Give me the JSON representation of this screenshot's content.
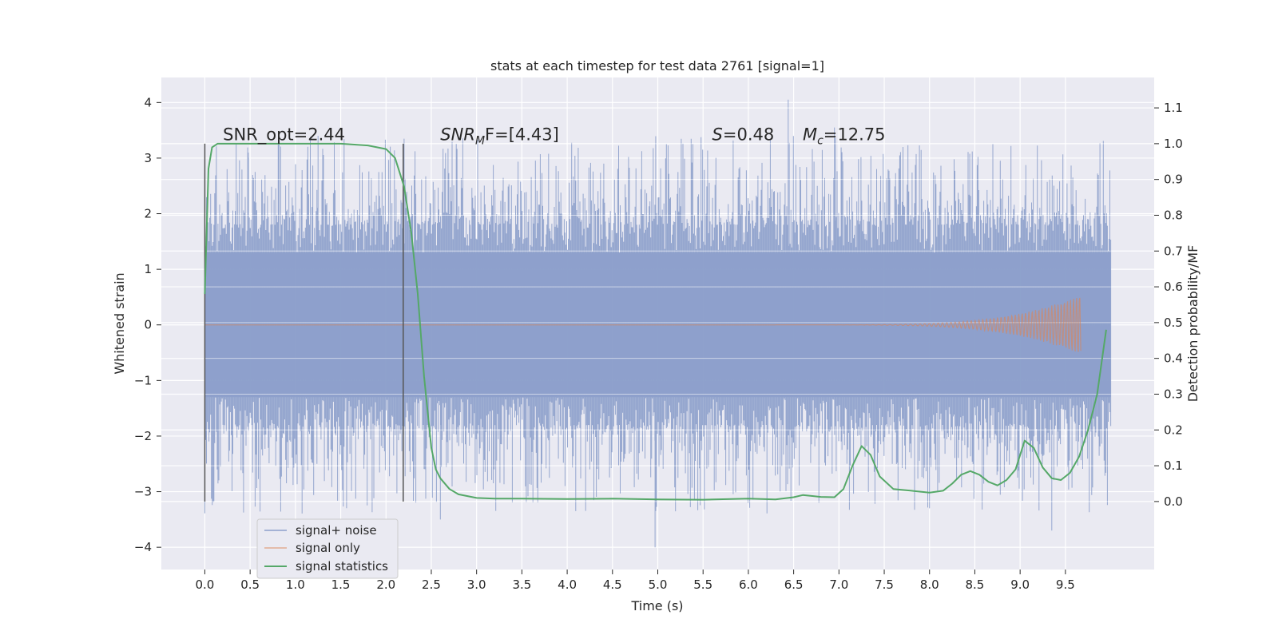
{
  "chart_data": {
    "type": "line",
    "title": "stats at each timestep for test data 2761 [signal=1]",
    "xlabel": "Time (s)",
    "ylabel_left": "Whitened strain",
    "ylabel_right": "Detection probability/MF",
    "xlim": [
      -0.48,
      10.48
    ],
    "ylim_left": [
      -4.4,
      4.45
    ],
    "ylim_right": [
      -0.19,
      1.185
    ],
    "x_ticks": [
      0.0,
      0.5,
      1.0,
      1.5,
      2.0,
      2.5,
      3.0,
      3.5,
      4.0,
      4.5,
      5.0,
      5.5,
      6.0,
      6.5,
      7.0,
      7.5,
      8.0,
      8.5,
      9.0,
      9.5
    ],
    "x_tick_labels": [
      "0.0",
      "0.5",
      "1.0",
      "1.5",
      "2.0",
      "2.5",
      "3.0",
      "3.5",
      "4.0",
      "4.5",
      "5.0",
      "5.5",
      "6.0",
      "6.5",
      "7.0",
      "7.5",
      "8.0",
      "8.5",
      "9.0",
      "9.5"
    ],
    "y_left_ticks": [
      4,
      3,
      2,
      1,
      0,
      -1,
      -2,
      -3,
      -4
    ],
    "y_left_tick_labels": [
      "4",
      "3",
      "2",
      "1",
      "0",
      "−1",
      "−2",
      "−3",
      "−4"
    ],
    "y_right_ticks": [
      1.1,
      1.0,
      0.9,
      0.8,
      0.7,
      0.6,
      0.5,
      0.4,
      0.3,
      0.2,
      0.1,
      0.0
    ],
    "y_right_tick_labels": [
      "1.1",
      "1.0",
      "0.9",
      "0.8",
      "0.7",
      "0.6",
      "0.5",
      "0.4",
      "0.3",
      "0.2",
      "0.1",
      "0.0"
    ],
    "grid": true,
    "legend_placement": "lower-left",
    "annotations": [
      {
        "text": "SNR_opt=2.44",
        "x": 0.2,
        "y_right": 1.01
      },
      {
        "text_main": "SNR",
        "text_sub": "M",
        "text_tail": "F=[4.43]",
        "italic": true,
        "x": 2.6,
        "y_right": 1.01
      },
      {
        "text_main": "S",
        "text_tail": "=0.48",
        "italic_main": true,
        "x": 5.6,
        "y_right": 1.01
      },
      {
        "text_main": "M",
        "text_sub": "c",
        "text_tail": "=12.75",
        "italic_main": true,
        "x": 6.6,
        "y_right": 1.01
      }
    ],
    "vertical_markers": [
      {
        "x": 0.0,
        "y_right_range": [
          0.0,
          1.0
        ]
      },
      {
        "x": 2.19,
        "y_right_range": [
          0.0,
          1.0
        ]
      }
    ],
    "series": [
      {
        "name": "signal+ noise",
        "axis": "left",
        "color": "#8da0cb",
        "kind": "noise_band",
        "x_range": [
          0.0,
          10.0
        ],
        "core_amplitude": 1.3,
        "typical_peak_range": [
          1.8,
          3.4
        ],
        "max": 4.05,
        "min": -4.0
      },
      {
        "name": "signal only",
        "axis": "left",
        "color": "#dd8452",
        "kind": "chirp",
        "x_range": [
          6.3,
          9.67
        ],
        "peak_amplitude": 0.55,
        "peak_time": 9.67
      },
      {
        "name": "signal statistics",
        "axis": "right",
        "color": "#55a868",
        "kind": "line",
        "x": [
          0.0,
          0.04,
          0.08,
          0.14,
          0.2,
          0.3,
          0.5,
          1.0,
          1.5,
          1.8,
          2.0,
          2.1,
          2.2,
          2.28,
          2.35,
          2.42,
          2.5,
          2.55,
          2.6,
          2.7,
          2.8,
          3.0,
          3.2,
          3.5,
          4.0,
          4.5,
          5.0,
          5.5,
          6.0,
          6.3,
          6.5,
          6.6,
          6.8,
          6.95,
          7.05,
          7.15,
          7.25,
          7.35,
          7.45,
          7.6,
          7.8,
          8.0,
          8.15,
          8.25,
          8.35,
          8.45,
          8.55,
          8.65,
          8.75,
          8.85,
          8.95,
          9.05,
          9.15,
          9.25,
          9.35,
          9.45,
          9.55,
          9.65,
          9.75,
          9.85,
          9.95
        ],
        "y": [
          0.58,
          0.93,
          0.99,
          1.0,
          1.0,
          1.0,
          1.0,
          1.0,
          1.0,
          0.995,
          0.985,
          0.96,
          0.88,
          0.75,
          0.58,
          0.35,
          0.15,
          0.09,
          0.065,
          0.035,
          0.02,
          0.01,
          0.008,
          0.008,
          0.007,
          0.008,
          0.006,
          0.005,
          0.008,
          0.006,
          0.012,
          0.018,
          0.013,
          0.012,
          0.035,
          0.1,
          0.155,
          0.13,
          0.07,
          0.035,
          0.03,
          0.025,
          0.03,
          0.05,
          0.075,
          0.085,
          0.075,
          0.055,
          0.045,
          0.06,
          0.09,
          0.17,
          0.15,
          0.095,
          0.065,
          0.06,
          0.08,
          0.125,
          0.2,
          0.3,
          0.48
        ]
      }
    ]
  }
}
